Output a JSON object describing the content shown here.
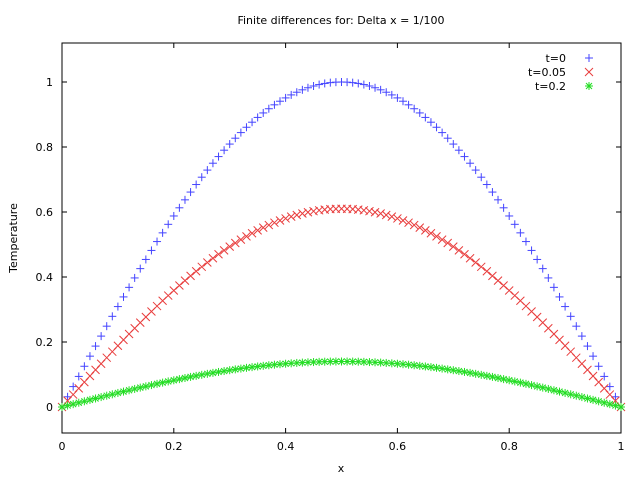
{
  "chart_data": {
    "type": "scatter",
    "title": "Finite differences for:  Delta x = 1/100",
    "xlabel": "x",
    "ylabel": "Temperature",
    "xlim": [
      0,
      1
    ],
    "ylim": [
      -0.08,
      1.12
    ],
    "xticks": [
      "0",
      "0.2",
      "0.4",
      "0.6",
      "0.8",
      "1"
    ],
    "yticks": [
      "0",
      "0.2",
      "0.4",
      "0.6",
      "0.8",
      "1"
    ],
    "grid": false,
    "legend_position": "top-right",
    "point_step": 0.01,
    "series": [
      {
        "name": "t=0",
        "marker": "plus",
        "color": "#4444ff",
        "peak": 1.0
      },
      {
        "name": "t=0.05",
        "marker": "cross",
        "color": "#e83c3c",
        "peak": 0.61
      },
      {
        "name": "t=0.2",
        "marker": "star",
        "color": "#22dd22",
        "peak": 0.14
      }
    ]
  }
}
